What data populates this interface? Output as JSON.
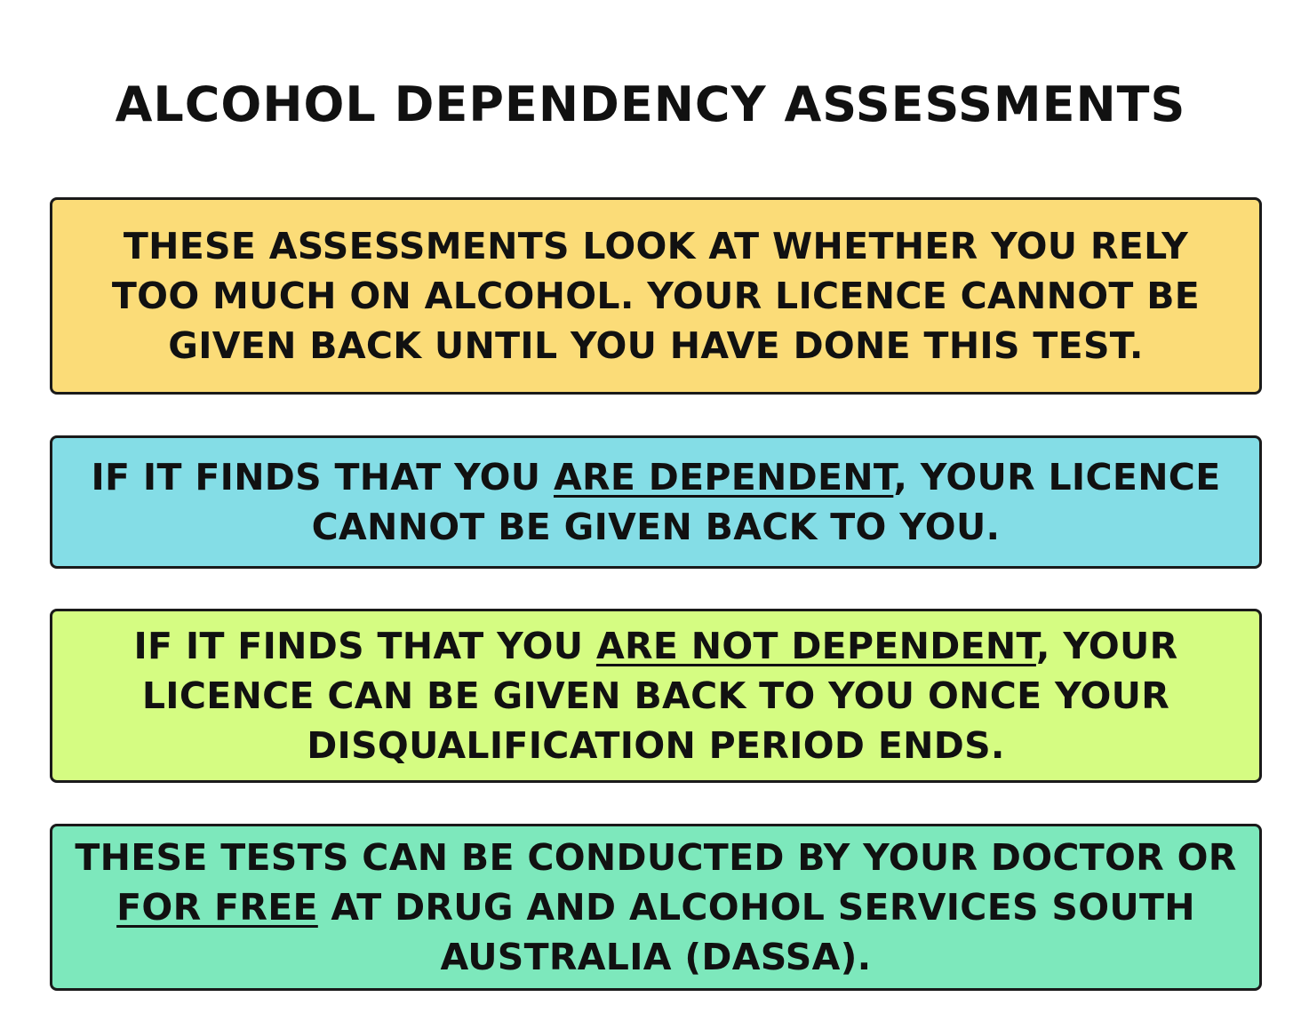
{
  "title": "ALCOHOL DEPENDENCY ASSESSMENTS",
  "boxes": [
    {
      "color": "#fbdc78",
      "lines": [
        "THESE ASSESSMENTS LOOK AT WHETHER YOU RELY",
        "TOO MUCH ON ALCOHOL. YOUR LICENCE CANNOT BE",
        "GIVEN BACK UNTIL YOU HAVE DONE THIS TEST."
      ]
    },
    {
      "color": "#84dde6",
      "line1_before": "IF IT FINDS THAT YOU ",
      "line1_underlined": "ARE DEPENDENT",
      "line1_after": ", YOUR LICENCE",
      "line2": "CANNOT BE GIVEN BACK TO YOU."
    },
    {
      "color": "#d5fc82",
      "line1_before": "IF IT FINDS THAT YOU ",
      "line1_underlined": "ARE NOT DEPENDENT",
      "line1_after": ", YOUR",
      "line2": "LICENCE CAN BE GIVEN BACK TO YOU ONCE YOUR",
      "line3": "DISQUALIFICATION PERIOD ENDS."
    },
    {
      "color": "#7de8bc",
      "line1": "THESE TESTS CAN BE CONDUCTED BY YOUR DOCTOR OR",
      "line2_underlined": "FOR FREE",
      "line2_after": " AT DRUG AND ALCOHOL SERVICES SOUTH",
      "line3": "AUSTRALIA (DASSA)."
    }
  ]
}
